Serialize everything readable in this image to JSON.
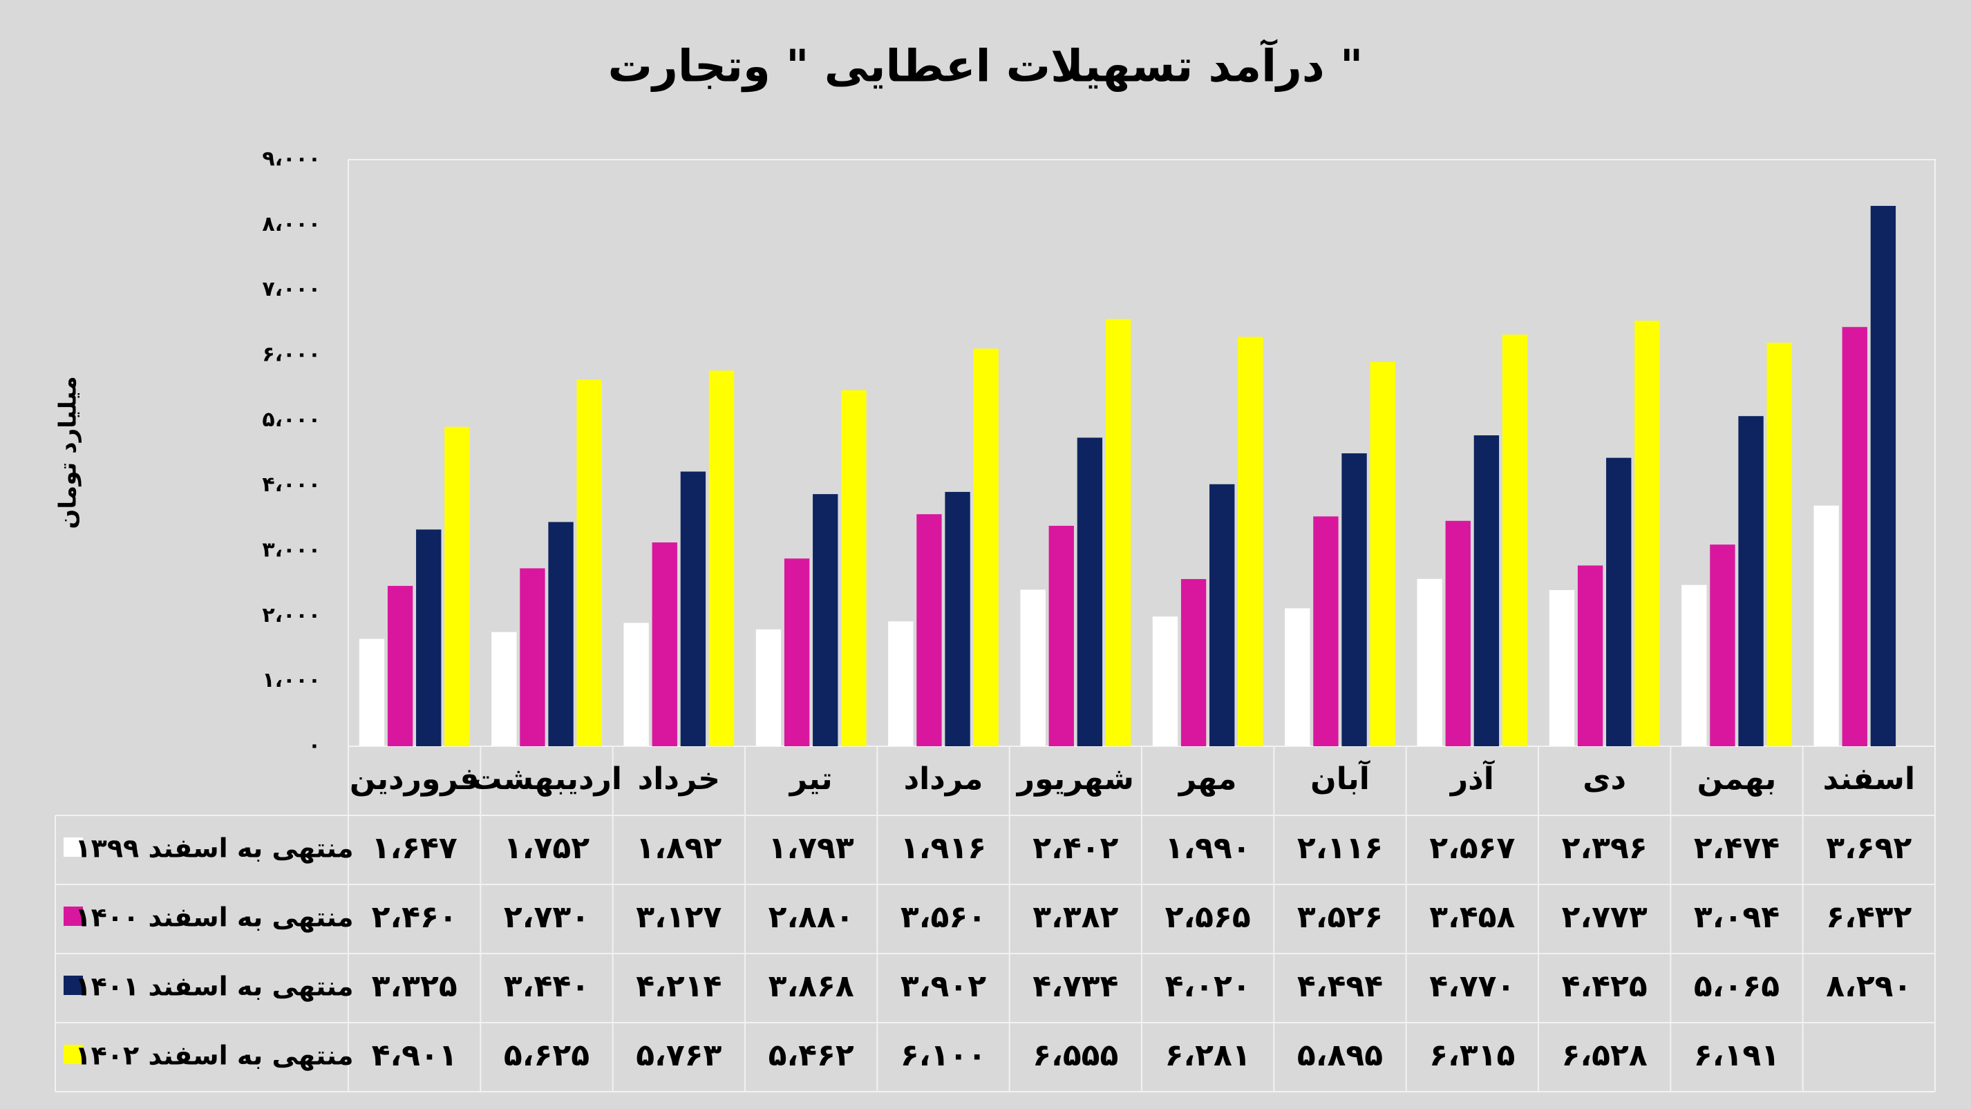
{
  "chart_data": {
    "type": "bar",
    "title": "درآمد تسهیلات اعطایی \" وتجارت \"",
    "y_label": "میلیارد تومان",
    "categories": [
      "فروردین",
      "اردیبهشت",
      "خرداد",
      "تیر",
      "مرداد",
      "شهریور",
      "مهر",
      "آبان",
      "آذر",
      "دی",
      "بهمن",
      "اسفند"
    ],
    "series": [
      {
        "name": "منتهی به اسفند ۱۳۹۹",
        "color": "#ffffff",
        "values": [
          1647,
          1752,
          1892,
          1793,
          1916,
          2402,
          1990,
          2116,
          2567,
          2396,
          2474,
          3692
        ],
        "value_labels": [
          "۱،۶۴۷",
          "۱،۷۵۲",
          "۱،۸۹۲",
          "۱،۷۹۳",
          "۱،۹۱۶",
          "۲،۴۰۲",
          "۱،۹۹۰",
          "۲،۱۱۶",
          "۲،۵۶۷",
          "۲،۳۹۶",
          "۲،۴۷۴",
          "۳،۶۹۲"
        ]
      },
      {
        "name": "منتهی به اسفند ۱۴۰۰",
        "color": "#d9179e",
        "values": [
          2460,
          2730,
          3127,
          2880,
          3560,
          3382,
          2565,
          3526,
          3458,
          2773,
          3094,
          6432
        ],
        "value_labels": [
          "۲،۴۶۰",
          "۲،۷۳۰",
          "۳،۱۲۷",
          "۲،۸۸۰",
          "۳،۵۶۰",
          "۳،۳۸۲",
          "۲،۵۶۵",
          "۳،۵۲۶",
          "۳،۴۵۸",
          "۲،۷۷۳",
          "۳،۰۹۴",
          "۶،۴۳۲"
        ]
      },
      {
        "name": "منتهی به اسفند ۱۴۰۱",
        "color": "#0d2461",
        "values": [
          3325,
          3440,
          4214,
          3868,
          3902,
          4734,
          4020,
          4494,
          4770,
          4425,
          5065,
          8290
        ],
        "value_labels": [
          "۳،۳۲۵",
          "۳،۴۴۰",
          "۴،۲۱۴",
          "۳،۸۶۸",
          "۳،۹۰۲",
          "۴،۷۳۴",
          "۴،۰۲۰",
          "۴،۴۹۴",
          "۴،۷۷۰",
          "۴،۴۲۵",
          "۵،۰۶۵",
          "۸،۲۹۰"
        ]
      },
      {
        "name": "منتهی به اسفند ۱۴۰۲",
        "color": "#ffff00",
        "values": [
          4901,
          5625,
          5763,
          5462,
          6100,
          6555,
          6281,
          5895,
          6315,
          6528,
          6191,
          null
        ],
        "value_labels": [
          "۴،۹۰۱",
          "۵،۶۲۵",
          "۵،۷۶۳",
          "۵،۴۶۲",
          "۶،۱۰۰",
          "۶،۵۵۵",
          "۶،۲۸۱",
          "۵،۸۹۵",
          "۶،۳۱۵",
          "۶،۵۲۸",
          "۶،۱۹۱",
          null
        ]
      }
    ],
    "ylim": [
      0,
      9000
    ],
    "yticks": [
      {
        "value": 0,
        "label": "۰"
      },
      {
        "value": 1000,
        "label": "۱،۰۰۰"
      },
      {
        "value": 2000,
        "label": "۲،۰۰۰"
      },
      {
        "value": 3000,
        "label": "۳،۰۰۰"
      },
      {
        "value": 4000,
        "label": "۴،۰۰۰"
      },
      {
        "value": 5000,
        "label": "۵،۰۰۰"
      },
      {
        "value": 6000,
        "label": "۶،۰۰۰"
      },
      {
        "value": 7000,
        "label": "۷،۰۰۰"
      },
      {
        "value": 8000,
        "label": "۸،۰۰۰"
      },
      {
        "value": 9000,
        "label": "۹،۰۰۰"
      }
    ],
    "grid": false
  }
}
